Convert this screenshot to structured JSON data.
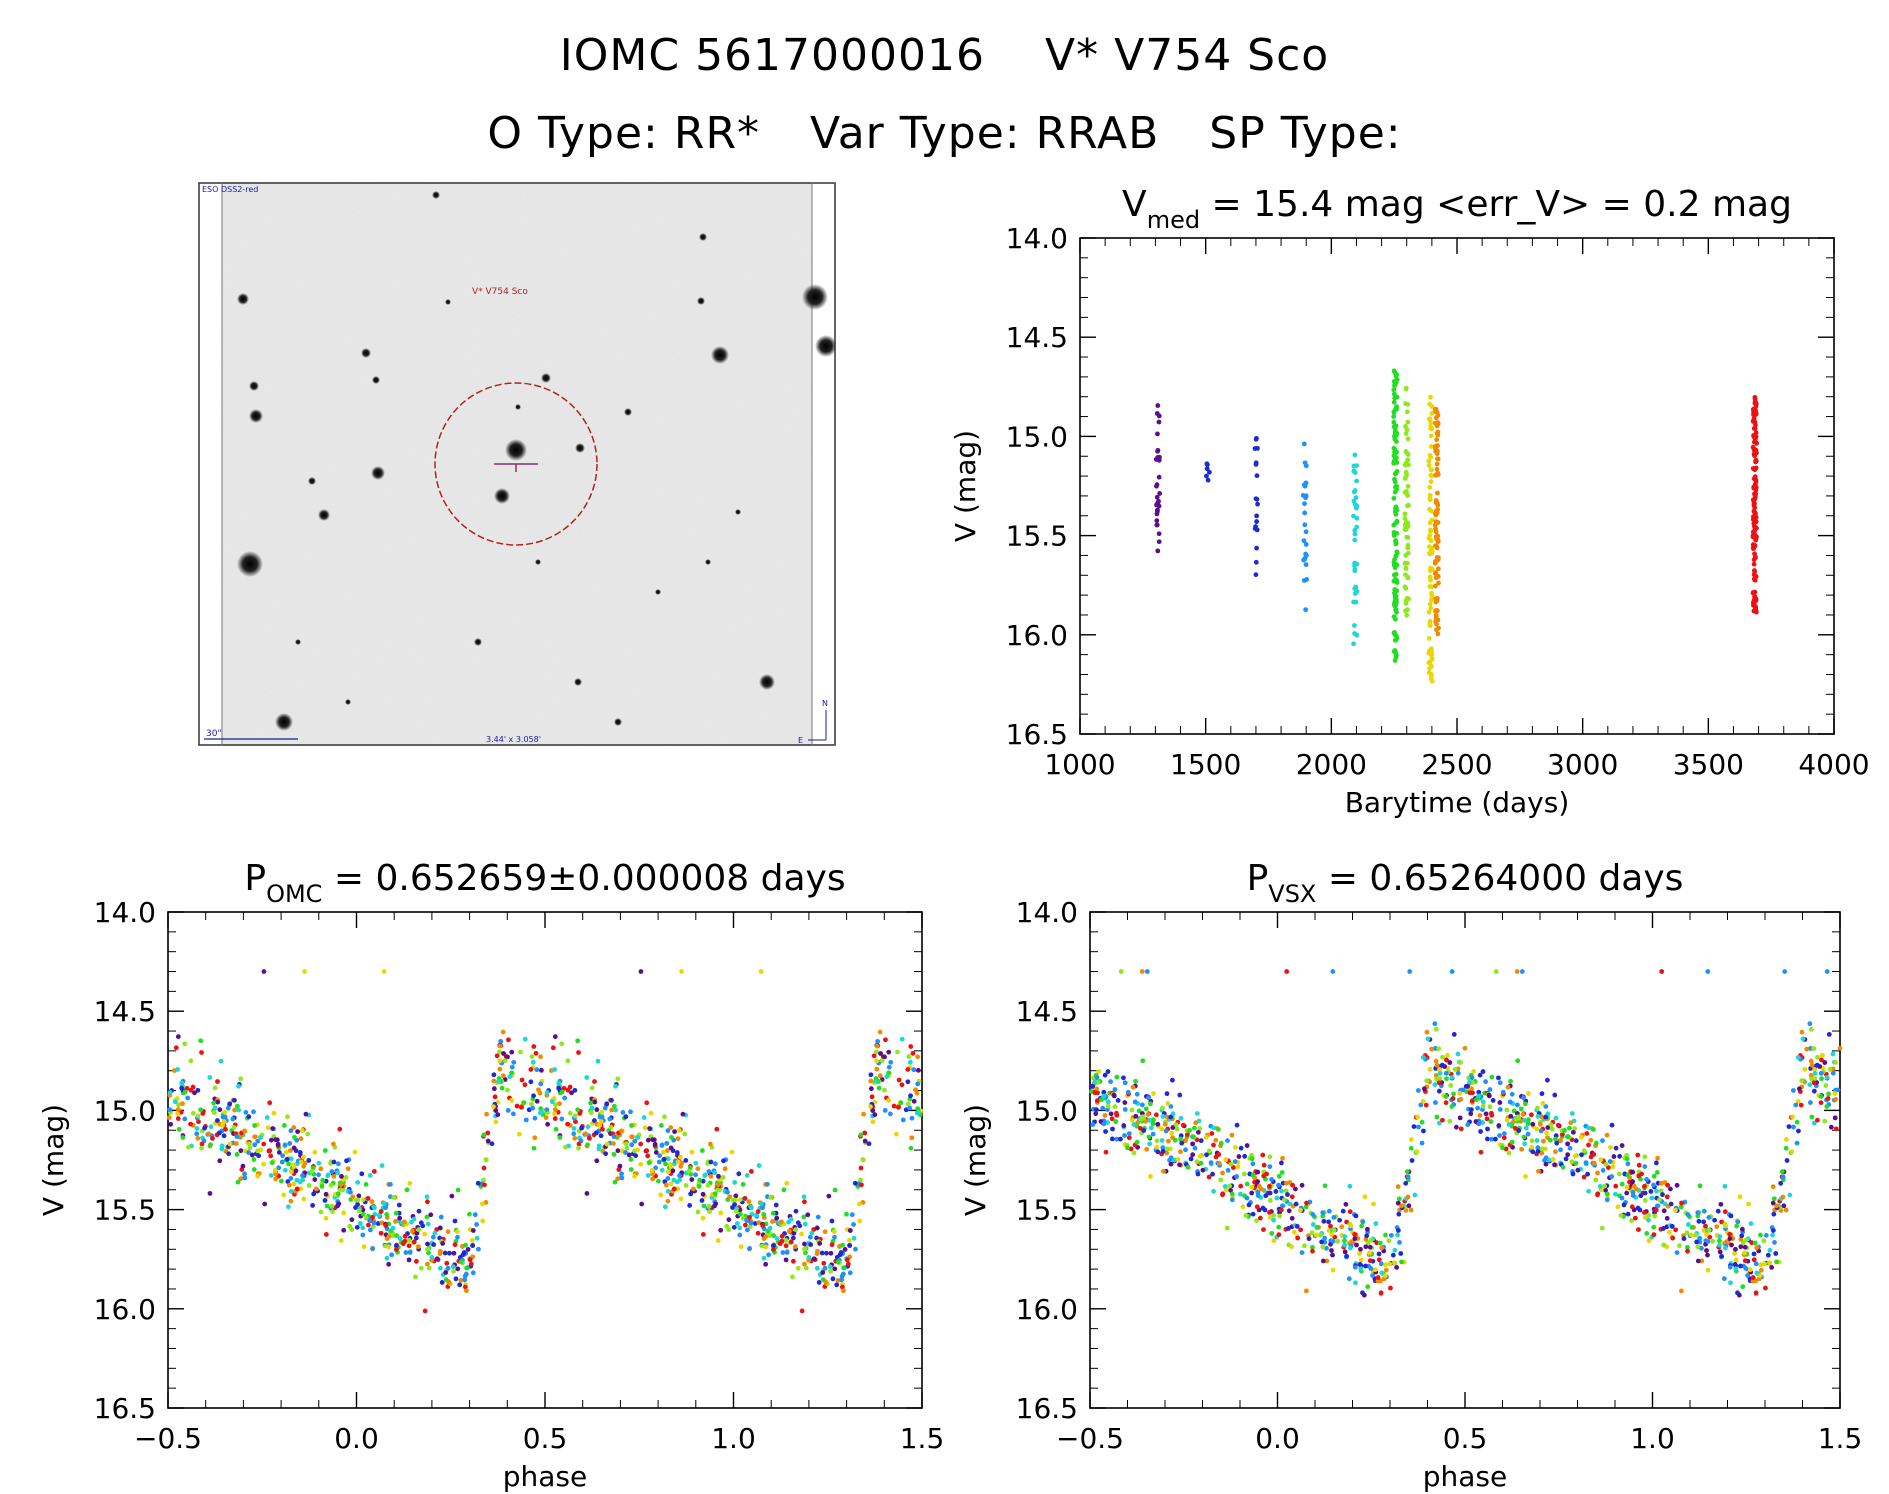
{
  "header": {
    "object_id": "IOMC 5617000016",
    "star_name": "V* V754 Sco",
    "o_type": "O Type: RR*",
    "var_type": "Var Type: RRAB",
    "sp_type": "SP Type:"
  },
  "sky_image": {
    "survey_label": "ESO DSS2-red",
    "target_label": "V* V754 Sco",
    "scale_label": "30\"",
    "fov_label": "3.44' x 3.058'",
    "north_label": "N",
    "east_label": "E",
    "colors": {
      "background": "#e9e9e9",
      "circle": "#b22222",
      "labels": "#1a1aa0",
      "target_label": "#b22222"
    }
  },
  "chart_data": [
    {
      "type": "scatter",
      "id": "lightcurve",
      "title_main": "V",
      "title_sub": "med",
      "title_rest": " = 15.4 mag <err_V> = 0.2 mag",
      "xlabel": "Barytime (days)",
      "ylabel": "V (mag)",
      "xlim": [
        1000,
        4000
      ],
      "ylim": [
        16.5,
        14.0
      ],
      "xticks": [
        "1000",
        "1500",
        "2000",
        "2500",
        "3000",
        "3500",
        "4000"
      ],
      "yticks": [
        "14.0",
        "14.5",
        "15.0",
        "15.5",
        "16.0",
        "16.5"
      ],
      "series": [
        {
          "x": 1310,
          "ymin": 14.75,
          "ymax": 15.6,
          "n": 30,
          "color": "#5b0f8c"
        },
        {
          "x": 1510,
          "ymin": 15.1,
          "ymax": 15.25,
          "n": 6,
          "color": "#1f2ad4"
        },
        {
          "x": 1700,
          "ymin": 15.0,
          "ymax": 15.7,
          "n": 18,
          "color": "#1f2ad4"
        },
        {
          "x": 1895,
          "ymin": 15.03,
          "ymax": 15.9,
          "n": 24,
          "color": "#1e90ff"
        },
        {
          "x": 2095,
          "ymin": 15.05,
          "ymax": 16.07,
          "n": 35,
          "color": "#1fd6d6"
        },
        {
          "x": 2255,
          "ymin": 14.65,
          "ymax": 16.14,
          "n": 120,
          "color": "#22dd22"
        },
        {
          "x": 2300,
          "ymin": 14.75,
          "ymax": 15.95,
          "n": 60,
          "color": "#8ee81a"
        },
        {
          "x": 2395,
          "ymin": 14.8,
          "ymax": 16.25,
          "n": 80,
          "color": "#e8d700"
        },
        {
          "x": 2420,
          "ymin": 14.85,
          "ymax": 16.0,
          "n": 90,
          "color": "#f08a00"
        },
        {
          "x": 3685,
          "ymin": 14.8,
          "ymax": 15.92,
          "n": 140,
          "color": "#ee1111"
        }
      ]
    },
    {
      "type": "scatter",
      "id": "phase-omc",
      "title_main": "P",
      "title_sub": "OMC",
      "title_rest": " = 0.652659±0.000008 days",
      "xlabel": "phase",
      "ylabel": "V (mag)",
      "xlim": [
        -0.5,
        1.5
      ],
      "ylim": [
        16.5,
        14.0
      ],
      "xticks": [
        "−0.5",
        "0.0",
        "0.5",
        "1.0",
        "1.5"
      ],
      "yticks": [
        "14.0",
        "14.5",
        "15.0",
        "15.5",
        "16.0",
        "16.5"
      ],
      "model": {
        "max_phase": 0.38,
        "rise_start": 0.3,
        "max_mag": 14.8,
        "min_mag": 15.75,
        "scatter": 0.18
      },
      "colors": [
        "#5b0f8c",
        "#1f2ad4",
        "#1e90ff",
        "#1fd6d6",
        "#22dd22",
        "#8ee81a",
        "#e8d700",
        "#f08a00",
        "#ee1111"
      ],
      "n_points": 700
    },
    {
      "type": "scatter",
      "id": "phase-vsx",
      "title_main": "P",
      "title_sub": "VSX",
      "title_rest": " = 0.65264000 days",
      "xlabel": "phase",
      "ylabel": "V (mag)",
      "xlim": [
        -0.5,
        1.5
      ],
      "ylim": [
        16.5,
        14.0
      ],
      "xticks": [
        "−0.5",
        "0.0",
        "0.5",
        "1.0",
        "1.5"
      ],
      "yticks": [
        "14.0",
        "14.5",
        "15.0",
        "15.5",
        "16.0",
        "16.5"
      ],
      "model": {
        "max_phase": 0.4,
        "rise_start": 0.31,
        "max_mag": 14.8,
        "min_mag": 15.75,
        "scatter": 0.18
      },
      "colors": [
        "#5b0f8c",
        "#1f2ad4",
        "#1e90ff",
        "#1fd6d6",
        "#22dd22",
        "#8ee81a",
        "#e8d700",
        "#f08a00",
        "#ee1111"
      ],
      "n_points": 700
    }
  ]
}
